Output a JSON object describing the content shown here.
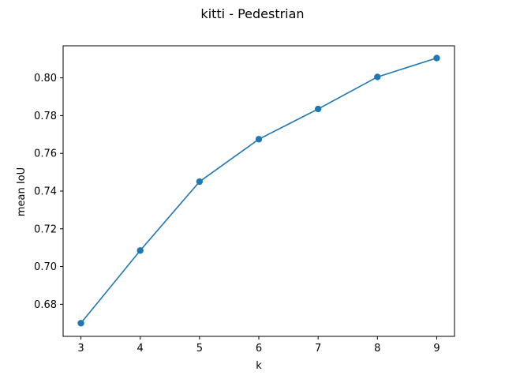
{
  "chart_data": {
    "type": "line",
    "title": "kitti - Pedestrian",
    "xlabel": "k",
    "ylabel": "mean IoU",
    "x": [
      3,
      4,
      5,
      6,
      7,
      8,
      9
    ],
    "series": [
      {
        "values": [
          0.67,
          0.7085,
          0.745,
          0.7675,
          0.7835,
          0.8005,
          0.8105
        ],
        "color": "#1f77b4",
        "marker": "circle"
      }
    ],
    "xlim": [
      2.7,
      9.3
    ],
    "ylim": [
      0.663,
      0.817
    ],
    "xticks": [
      3,
      4,
      5,
      6,
      7,
      8,
      9
    ],
    "yticks": [
      0.68,
      0.7,
      0.72,
      0.74,
      0.76,
      0.78,
      0.8
    ],
    "yticks_labels": [
      "0.68",
      "0.70",
      "0.72",
      "0.74",
      "0.76",
      "0.78",
      "0.80"
    ],
    "grid": false,
    "legend": "none"
  }
}
